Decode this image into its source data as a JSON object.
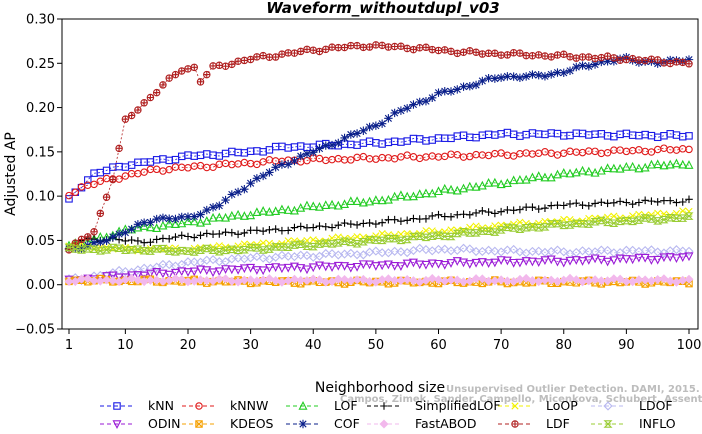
{
  "chart_data": {
    "type": "line",
    "title": "Waveform_withoutdupl_v03",
    "xlabel": "Neighborhood size",
    "ylabel": "Adjusted AP",
    "xlim": [
      1,
      100
    ],
    "ylim": [
      -0.05,
      0.3
    ],
    "x_ticks": [
      1,
      10,
      20,
      30,
      40,
      50,
      60,
      70,
      80,
      90,
      100
    ],
    "y_ticks": [
      -0.05,
      0.0,
      0.05,
      0.1,
      0.15,
      0.2,
      0.25,
      0.3
    ],
    "y_tick_labels": [
      "−0.05",
      "0.00",
      "0.05",
      "0.10",
      "0.15",
      "0.20",
      "0.25",
      "0.30"
    ],
    "grid": false,
    "legend_position": "bottom",
    "watermark_lines": [
      "Campos, Zimek, Sander, Campello, Micenkova, Schubert, Assent, Houle",
      "Unsupervised Outlier Detection. DAMI, 2015."
    ],
    "series": [
      {
        "name": "kNN",
        "color": "#1a1ae6",
        "marker": "square",
        "anchors": [
          [
            1,
            0.095
          ],
          [
            2,
            0.105
          ],
          [
            5,
            0.125
          ],
          [
            10,
            0.135
          ],
          [
            20,
            0.145
          ],
          [
            30,
            0.15
          ],
          [
            35,
            0.155
          ],
          [
            50,
            0.16
          ],
          [
            60,
            0.165
          ],
          [
            70,
            0.17
          ],
          [
            80,
            0.17
          ],
          [
            100,
            0.168
          ]
        ]
      },
      {
        "name": "kNNW",
        "color": "#e01a1a",
        "marker": "circle",
        "anchors": [
          [
            1,
            0.102
          ],
          [
            3,
            0.11
          ],
          [
            8,
            0.12
          ],
          [
            15,
            0.13
          ],
          [
            25,
            0.135
          ],
          [
            35,
            0.14
          ],
          [
            50,
            0.143
          ],
          [
            70,
            0.147
          ],
          [
            85,
            0.15
          ],
          [
            100,
            0.153
          ]
        ]
      },
      {
        "name": "LOF",
        "color": "#22cc22",
        "marker": "triangle",
        "anchors": [
          [
            1,
            0.045
          ],
          [
            5,
            0.05
          ],
          [
            10,
            0.062
          ],
          [
            20,
            0.07
          ],
          [
            30,
            0.08
          ],
          [
            40,
            0.088
          ],
          [
            50,
            0.095
          ],
          [
            60,
            0.105
          ],
          [
            70,
            0.115
          ],
          [
            80,
            0.125
          ],
          [
            90,
            0.132
          ],
          [
            100,
            0.137
          ]
        ]
      },
      {
        "name": "SimplifiedLOF",
        "color": "#000000",
        "marker": "plus",
        "anchors": [
          [
            1,
            0.04
          ],
          [
            3,
            0.05
          ],
          [
            8,
            0.052
          ],
          [
            12,
            0.048
          ],
          [
            20,
            0.055
          ],
          [
            30,
            0.06
          ],
          [
            40,
            0.065
          ],
          [
            50,
            0.07
          ],
          [
            60,
            0.077
          ],
          [
            70,
            0.083
          ],
          [
            80,
            0.09
          ],
          [
            90,
            0.093
          ],
          [
            100,
            0.095
          ]
        ]
      },
      {
        "name": "LoOP",
        "color": "#f2f200",
        "marker": "cross",
        "anchors": [
          [
            1,
            0.045
          ],
          [
            10,
            0.04
          ],
          [
            20,
            0.04
          ],
          [
            30,
            0.045
          ],
          [
            40,
            0.05
          ],
          [
            50,
            0.055
          ],
          [
            60,
            0.06
          ],
          [
            70,
            0.067
          ],
          [
            80,
            0.072
          ],
          [
            90,
            0.077
          ],
          [
            100,
            0.082
          ]
        ]
      },
      {
        "name": "LDOF",
        "color": "#b8b8f0",
        "marker": "diamond",
        "anchors": [
          [
            1,
            0.005
          ],
          [
            10,
            0.015
          ],
          [
            20,
            0.025
          ],
          [
            30,
            0.03
          ],
          [
            40,
            0.033
          ],
          [
            50,
            0.036
          ],
          [
            60,
            0.04
          ],
          [
            70,
            0.038
          ],
          [
            80,
            0.037
          ],
          [
            90,
            0.038
          ],
          [
            100,
            0.038
          ]
        ]
      },
      {
        "name": "ODIN",
        "color": "#9a1ad6",
        "marker": "triangle-down",
        "anchors": [
          [
            1,
            0.005
          ],
          [
            10,
            0.01
          ],
          [
            20,
            0.015
          ],
          [
            30,
            0.018
          ],
          [
            40,
            0.02
          ],
          [
            50,
            0.022
          ],
          [
            60,
            0.024
          ],
          [
            70,
            0.026
          ],
          [
            80,
            0.027
          ],
          [
            90,
            0.029
          ],
          [
            100,
            0.031
          ]
        ]
      },
      {
        "name": "KDEOS",
        "color": "#f5a000",
        "marker": "square-x",
        "anchors": [
          [
            1,
            0.005
          ],
          [
            20,
            0.004
          ],
          [
            40,
            0.003
          ],
          [
            60,
            0.003
          ],
          [
            80,
            0.003
          ],
          [
            100,
            0.003
          ]
        ]
      },
      {
        "name": "COF",
        "color": "#0a1f8a",
        "marker": "asterisk",
        "anchors": [
          [
            1,
            0.04
          ],
          [
            5,
            0.045
          ],
          [
            10,
            0.06
          ],
          [
            15,
            0.075
          ],
          [
            20,
            0.075
          ],
          [
            25,
            0.09
          ],
          [
            30,
            0.115
          ],
          [
            35,
            0.135
          ],
          [
            40,
            0.15
          ],
          [
            45,
            0.165
          ],
          [
            50,
            0.18
          ],
          [
            55,
            0.2
          ],
          [
            60,
            0.215
          ],
          [
            65,
            0.225
          ],
          [
            70,
            0.235
          ],
          [
            75,
            0.235
          ],
          [
            80,
            0.24
          ],
          [
            85,
            0.25
          ],
          [
            90,
            0.255
          ],
          [
            95,
            0.25
          ],
          [
            100,
            0.255
          ]
        ]
      },
      {
        "name": "FastABOD",
        "color": "#f2b8ec",
        "marker": "diamond-filled",
        "anchors": [
          [
            1,
            0.005
          ],
          [
            20,
            0.005
          ],
          [
            40,
            0.005
          ],
          [
            60,
            0.005
          ],
          [
            80,
            0.005
          ],
          [
            100,
            0.005
          ]
        ]
      },
      {
        "name": "LDF",
        "color": "#b02020",
        "marker": "circle-plus",
        "anchors": [
          [
            1,
            0.04
          ],
          [
            5,
            0.06
          ],
          [
            8,
            0.12
          ],
          [
            10,
            0.185
          ],
          [
            13,
            0.205
          ],
          [
            16,
            0.225
          ],
          [
            19,
            0.243
          ],
          [
            21,
            0.245
          ],
          [
            22,
            0.23
          ],
          [
            24,
            0.245
          ],
          [
            30,
            0.255
          ],
          [
            40,
            0.265
          ],
          [
            48,
            0.27
          ],
          [
            55,
            0.268
          ],
          [
            65,
            0.262
          ],
          [
            80,
            0.258
          ],
          [
            90,
            0.255
          ],
          [
            100,
            0.25
          ]
        ]
      },
      {
        "name": "INFLO",
        "color": "#99cc33",
        "marker": "hourglass",
        "anchors": [
          [
            1,
            0.04
          ],
          [
            5,
            0.04
          ],
          [
            10,
            0.04
          ],
          [
            20,
            0.038
          ],
          [
            30,
            0.04
          ],
          [
            40,
            0.045
          ],
          [
            50,
            0.05
          ],
          [
            60,
            0.055
          ],
          [
            70,
            0.062
          ],
          [
            80,
            0.068
          ],
          [
            90,
            0.072
          ],
          [
            100,
            0.076
          ]
        ]
      }
    ]
  }
}
